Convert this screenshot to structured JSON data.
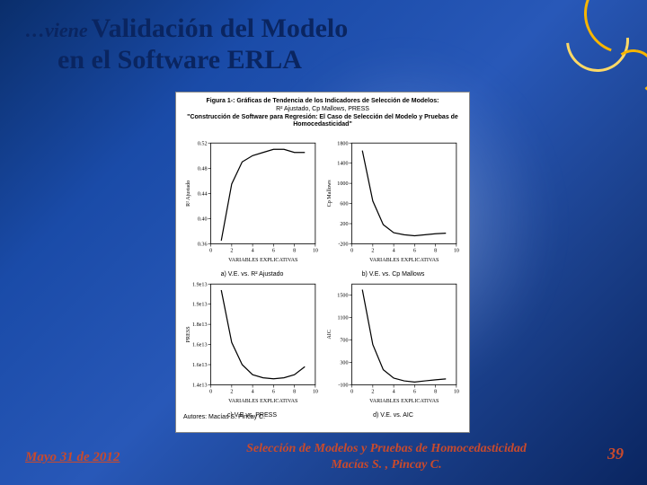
{
  "title": {
    "prefix": "…viene",
    "line1": "Validación del Modelo",
    "line2": "en el Software ERLA"
  },
  "figure": {
    "heading_l1": "Figura 1-: Gráficas de Tendencia de los Indicadores de Selección de Modelos:",
    "heading_l2": "R² Ajustado, Cp Mallows, PRESS",
    "heading_l3": "\"Construcción de Software para Regresión: El Caso de Selección del Modelo y Pruebas de",
    "heading_l4": "Homocedasticidad\"",
    "authors": "Autores:  Macías S.    Pincay C.",
    "panels": [
      {
        "caption": "a)  V.E. vs. R² Ajustado",
        "ylabel": "R² Ajustado",
        "xlabel": "VARIABLES EXPLICATIVAS",
        "xlim": [
          0,
          10
        ],
        "ylim": [
          0.36,
          0.52
        ],
        "xticks": [
          0,
          2,
          4,
          6,
          8,
          10
        ],
        "yticks": [
          0.36,
          0.4,
          0.44,
          0.48,
          0.52
        ],
        "x": [
          1,
          2,
          3,
          4,
          5,
          6,
          7,
          8,
          9
        ],
        "y": [
          0.365,
          0.455,
          0.49,
          0.5,
          0.505,
          0.51,
          0.51,
          0.505,
          0.505
        ],
        "line_color": "#000000",
        "line_width": 1.2,
        "axis_color": "#000000",
        "background": "#ffffff",
        "font_size": 6
      },
      {
        "caption": "b)  V.E. vs. Cp Mallows",
        "ylabel": "Cp Mallows",
        "xlabel": "VARIABLES EXPLICATIVAS",
        "xlim": [
          0,
          10
        ],
        "ylim": [
          -200,
          1800
        ],
        "xticks": [
          0,
          2,
          4,
          6,
          8,
          10
        ],
        "yticks": [
          -200,
          200,
          600,
          1000,
          1400,
          1800
        ],
        "x": [
          1,
          2,
          3,
          4,
          5,
          6,
          7,
          8,
          9
        ],
        "y": [
          1650,
          650,
          180,
          20,
          -20,
          -40,
          -20,
          0,
          10
        ],
        "line_color": "#000000",
        "line_width": 1.2,
        "axis_color": "#000000",
        "background": "#ffffff",
        "font_size": 6
      },
      {
        "caption": "c)  V.E vs. PRESS",
        "ylabel": "PRESS",
        "xlabel": "VARIABLES EXPLICATIVAS",
        "xlim": [
          0,
          10
        ],
        "ylim": [
          14500000000000.0,
          19500000000000.0
        ],
        "xticks": [
          0,
          2,
          4,
          6,
          8,
          10
        ],
        "yticks": [
          14500000000000.0,
          15500000000000.0,
          16500000000000.0,
          17500000000000.0,
          18500000000000.0,
          19500000000000.0
        ],
        "x": [
          1,
          2,
          3,
          4,
          5,
          6,
          7,
          8,
          9
        ],
        "y": [
          19200000000000.0,
          16600000000000.0,
          15500000000000.0,
          15000000000000.0,
          14850000000000.0,
          14800000000000.0,
          14850000000000.0,
          15000000000000.0,
          15400000000000.0
        ],
        "line_color": "#000000",
        "line_width": 1.2,
        "axis_color": "#000000",
        "background": "#ffffff",
        "font_size": 6
      },
      {
        "caption": "d)  V.E. vs. AIC",
        "ylabel": "AIC",
        "xlabel": "VARIABLES EXPLICATIVAS",
        "xlim": [
          0,
          10
        ],
        "ylim": [
          -100,
          1700
        ],
        "xticks": [
          0,
          2,
          4,
          6,
          8,
          10
        ],
        "yticks": [
          -100,
          300,
          700,
          1100,
          1500
        ],
        "x": [
          1,
          2,
          3,
          4,
          5,
          6,
          7,
          8,
          9
        ],
        "y": [
          1600,
          620,
          170,
          20,
          -30,
          -50,
          -30,
          -10,
          5
        ],
        "line_color": "#000000",
        "line_width": 1.2,
        "axis_color": "#000000",
        "background": "#ffffff",
        "font_size": 6
      }
    ]
  },
  "footer": {
    "date": "Mayo 31 de 2012",
    "center_l1": "Selección de Modelos y Pruebas de Homocedasticidad",
    "center_l2": "Macías S. , Pincay C.",
    "page": "39"
  },
  "colors": {
    "title": "#0a2560",
    "accent": "#c94a2c",
    "gold": "#f7b500"
  }
}
